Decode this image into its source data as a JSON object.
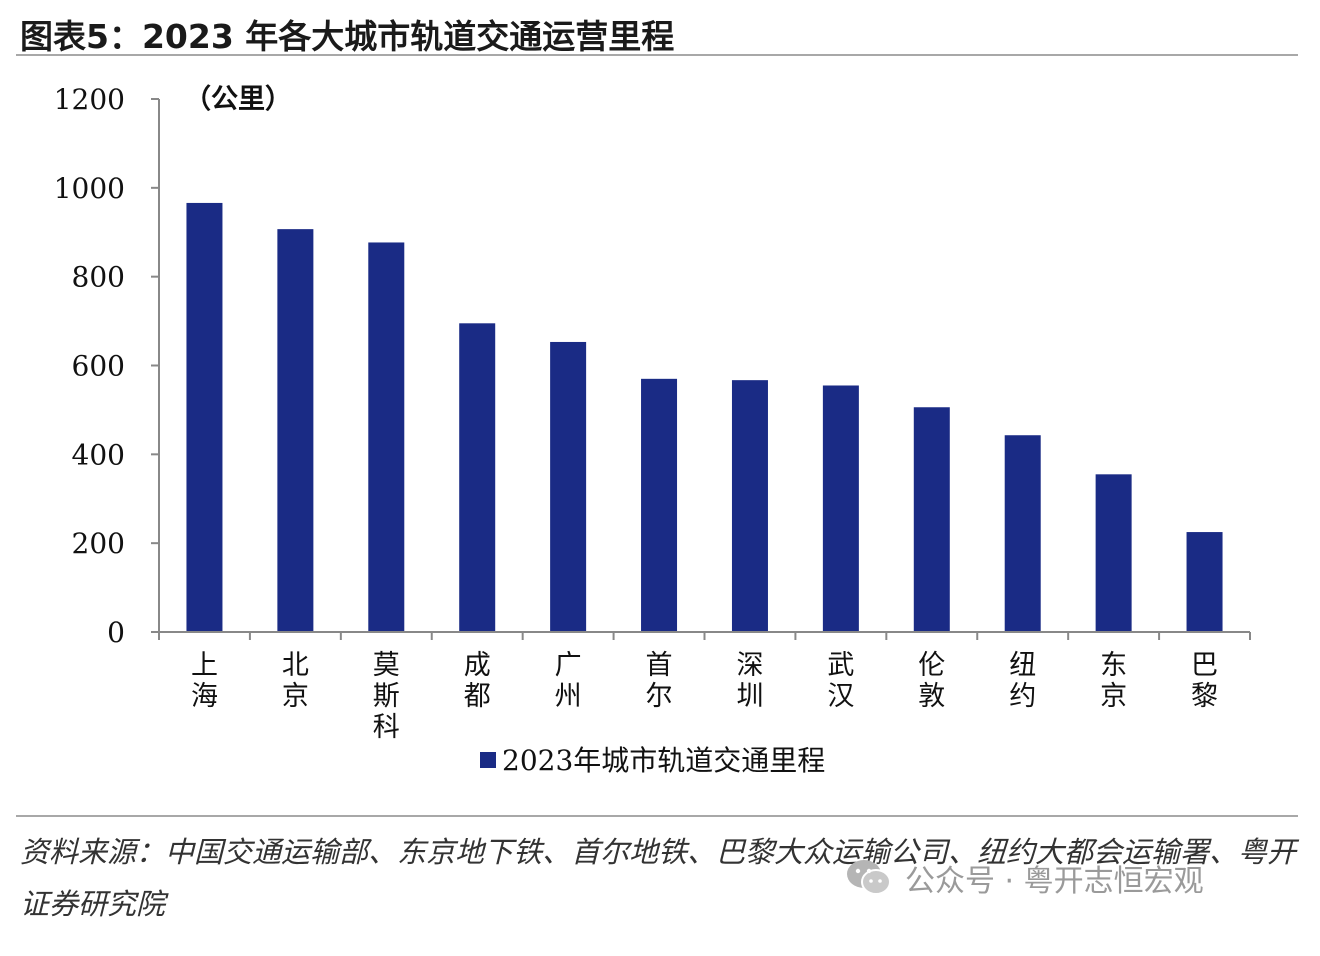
{
  "title": "图表5：2023 年各大城市轨道交通运营里程",
  "chart_data": {
    "type": "bar",
    "unit_label": "（公里）",
    "categories": [
      "上海",
      "北京",
      "莫斯科",
      "成都",
      "广州",
      "首尔",
      "深圳",
      "武汉",
      "伦敦",
      "纽约",
      "东京",
      "巴黎"
    ],
    "series": [
      {
        "name": "2023年城市轨道交通里程",
        "values": [
          966,
          907,
          877,
          695,
          653,
          570,
          567,
          555,
          506,
          443,
          355,
          225
        ],
        "color": "#1a2b85"
      }
    ],
    "ylim": [
      0,
      1200
    ],
    "yticks": [
      "0",
      "200",
      "400",
      "600",
      "800",
      "1000",
      "1200"
    ],
    "legend_position": "bottom-center",
    "grid": false
  },
  "source": "资料来源：中国交通运输部、东京地下铁、首尔地铁、巴黎大众运输公司、纽约大都会运输署、粤开证券研究院",
  "watermark": "公众号 · 粤开志恒宏观",
  "colors": {
    "bar": "#1a2b85",
    "axis": "#888888",
    "rule": "#a8a8a8"
  }
}
